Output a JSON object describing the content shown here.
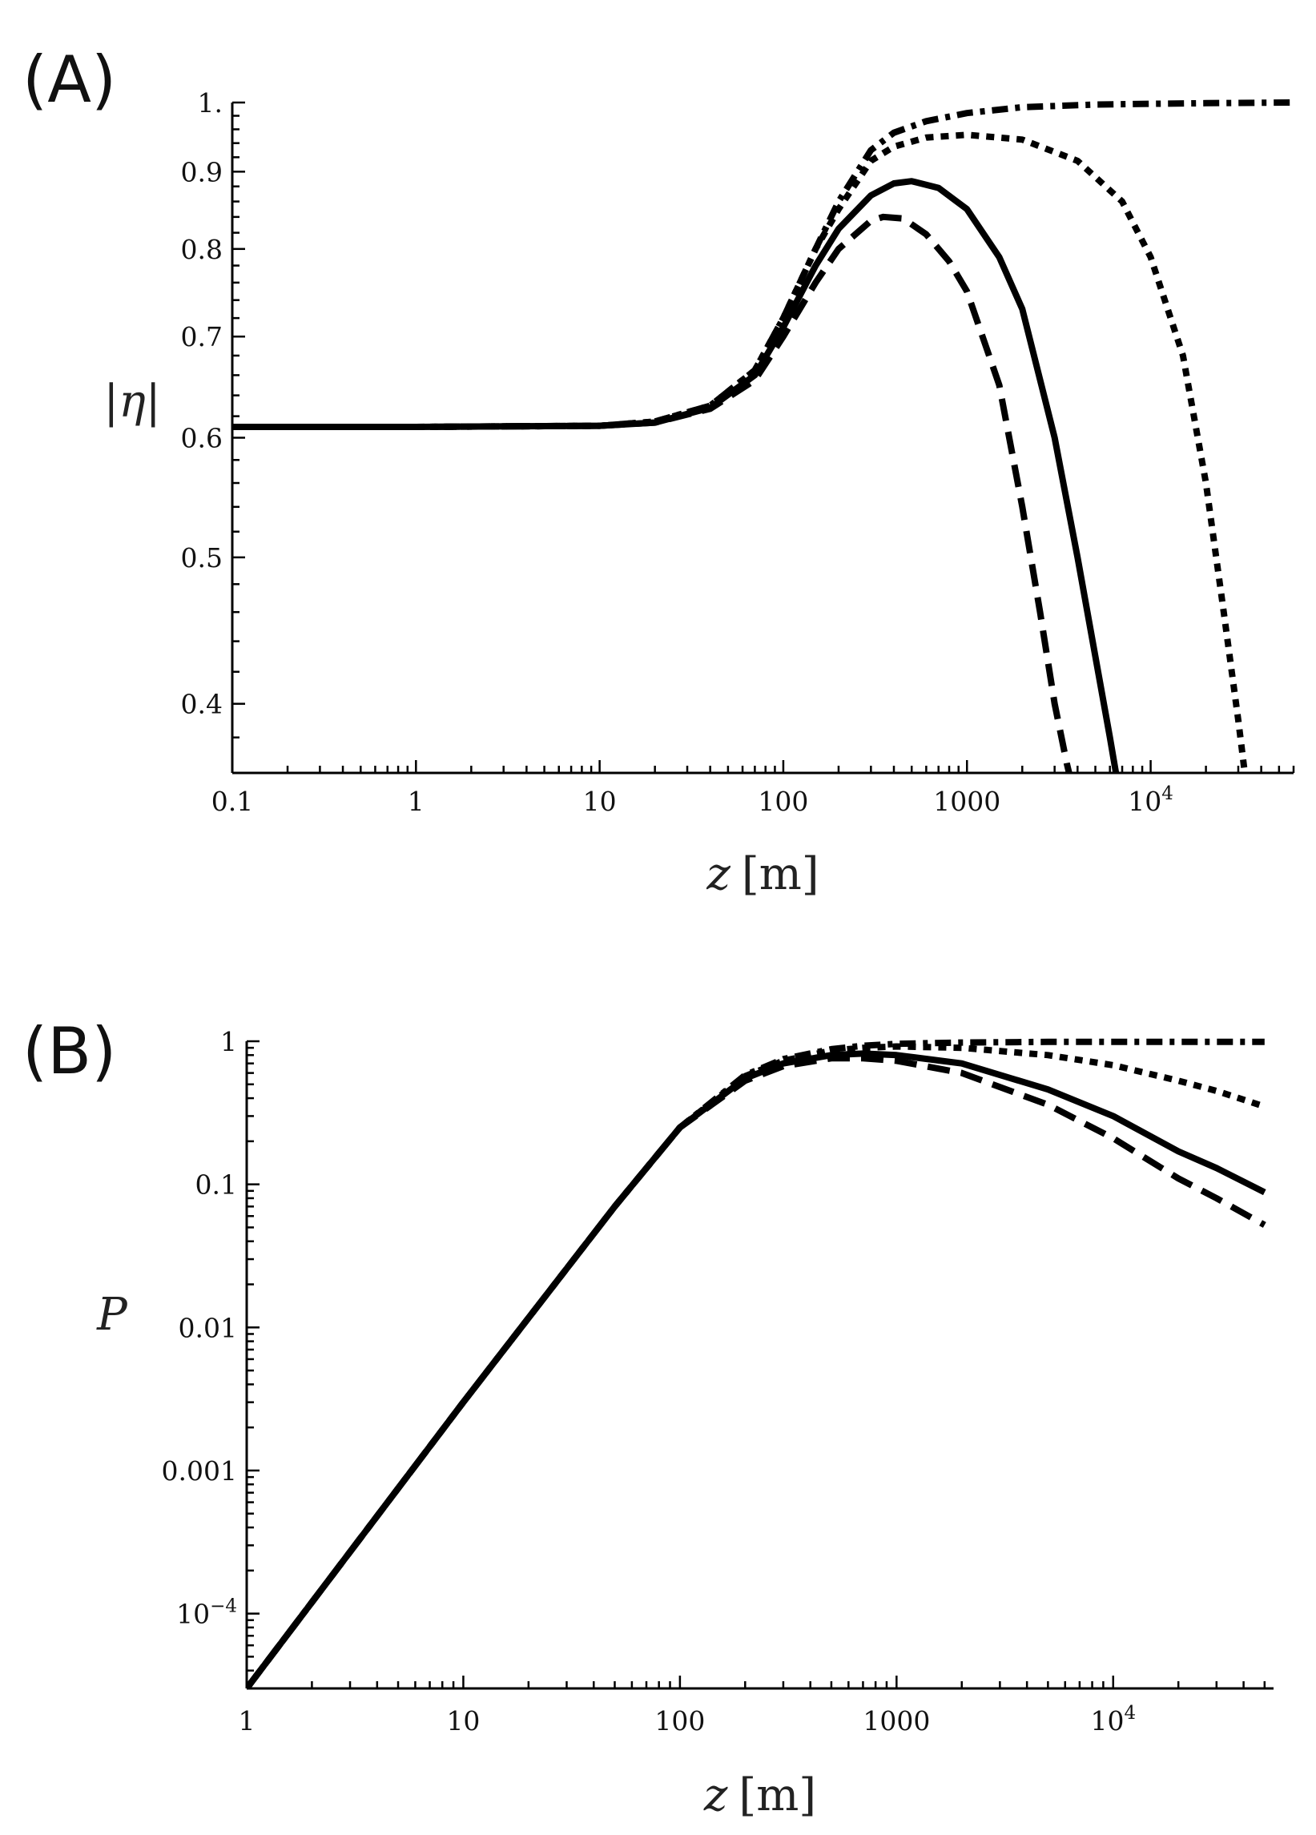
{
  "chart_data": [
    {
      "type": "line",
      "panel_label": "(A)",
      "ylabel": "|η|",
      "xlabel_var": "z",
      "xlabel_unit": "[m]",
      "xscale": "log",
      "yscale": "log",
      "xlim": [
        0.1,
        60000
      ],
      "ylim": [
        0.36,
        1.0
      ],
      "xticks": [
        {
          "value": 0.1,
          "label": "0.1"
        },
        {
          "value": 1,
          "label": "1"
        },
        {
          "value": 10,
          "label": "10"
        },
        {
          "value": 100,
          "label": "100"
        },
        {
          "value": 1000,
          "label": "1000"
        },
        {
          "value": 10000,
          "label": "10",
          "sup": "4"
        }
      ],
      "yticks": [
        {
          "value": 0.4,
          "label": "0.4"
        },
        {
          "value": 0.5,
          "label": "0.5"
        },
        {
          "value": 0.6,
          "label": "0.6"
        },
        {
          "value": 0.7,
          "label": "0.7"
        },
        {
          "value": 0.8,
          "label": "0.8"
        },
        {
          "value": 0.9,
          "label": "0.9"
        },
        {
          "value": 1.0,
          "label": "1."
        }
      ],
      "grid": false,
      "legend": "none",
      "series": [
        {
          "style": "dashdot",
          "x": [
            0.1,
            1,
            10,
            20,
            40,
            70,
            100,
            150,
            200,
            300,
            400,
            600,
            1000,
            2000,
            5000,
            10000,
            20000,
            60000
          ],
          "y": [
            0.61,
            0.61,
            0.611,
            0.615,
            0.63,
            0.665,
            0.72,
            0.8,
            0.86,
            0.93,
            0.955,
            0.972,
            0.984,
            0.993,
            0.997,
            0.998,
            0.999,
            1.0
          ]
        },
        {
          "style": "dotted",
          "x": [
            0.1,
            1,
            10,
            20,
            40,
            70,
            100,
            150,
            200,
            300,
            400,
            600,
            1000,
            2000,
            4000,
            7000,
            10000,
            15000,
            20000,
            25000,
            30000,
            33000
          ],
          "y": [
            0.61,
            0.61,
            0.611,
            0.615,
            0.63,
            0.665,
            0.72,
            0.8,
            0.85,
            0.915,
            0.935,
            0.948,
            0.952,
            0.945,
            0.915,
            0.86,
            0.79,
            0.68,
            0.56,
            0.46,
            0.39,
            0.355
          ]
        },
        {
          "style": "solid",
          "x": [
            0.1,
            1,
            10,
            20,
            40,
            70,
            100,
            150,
            200,
            300,
            400,
            500,
            700,
            1000,
            1500,
            2000,
            3000,
            4000,
            5000,
            6000,
            6600
          ],
          "y": [
            0.61,
            0.61,
            0.611,
            0.614,
            0.628,
            0.66,
            0.71,
            0.78,
            0.825,
            0.868,
            0.884,
            0.887,
            0.878,
            0.85,
            0.79,
            0.73,
            0.6,
            0.5,
            0.43,
            0.38,
            0.355
          ]
        },
        {
          "style": "dashed",
          "x": [
            0.1,
            1,
            10,
            20,
            40,
            70,
            100,
            150,
            200,
            300,
            350,
            450,
            600,
            800,
            1000,
            1500,
            2000,
            2500,
            3000,
            3500,
            3700
          ],
          "y": [
            0.61,
            0.61,
            0.611,
            0.614,
            0.627,
            0.655,
            0.7,
            0.76,
            0.8,
            0.835,
            0.84,
            0.838,
            0.818,
            0.785,
            0.75,
            0.65,
            0.54,
            0.46,
            0.4,
            0.365,
            0.355
          ]
        }
      ]
    },
    {
      "type": "line",
      "panel_label": "(B)",
      "ylabel": "P",
      "xlabel_var": "z",
      "xlabel_unit": "[m]",
      "xscale": "log",
      "yscale": "log",
      "xlim": [
        1,
        55000
      ],
      "ylim": [
        3e-05,
        1.0
      ],
      "xticks": [
        {
          "value": 1,
          "label": "1"
        },
        {
          "value": 10,
          "label": "10"
        },
        {
          "value": 100,
          "label": "100"
        },
        {
          "value": 1000,
          "label": "1000"
        },
        {
          "value": 10000,
          "label": "10",
          "sup": "4"
        }
      ],
      "yticks": [
        {
          "value": 0.0001,
          "label": "10",
          "sup": "−4"
        },
        {
          "value": 0.001,
          "label": "0.001"
        },
        {
          "value": 0.01,
          "label": "0.01"
        },
        {
          "value": 0.1,
          "label": "0.1"
        },
        {
          "value": 1,
          "label": "1"
        }
      ],
      "grid": false,
      "legend": "none",
      "series": [
        {
          "style": "dashdot",
          "x": [
            1,
            10,
            50,
            100,
            200,
            300,
            500,
            700,
            1000,
            2000,
            5000,
            10000,
            20000,
            50000
          ],
          "y": [
            3e-05,
            0.003,
            0.07,
            0.25,
            0.58,
            0.75,
            0.88,
            0.93,
            0.96,
            0.98,
            0.99,
            0.99,
            0.99,
            0.99
          ]
        },
        {
          "style": "dotted",
          "x": [
            1,
            10,
            50,
            100,
            200,
            300,
            500,
            700,
            1000,
            2000,
            5000,
            10000,
            20000,
            30000,
            50000
          ],
          "y": [
            3e-05,
            0.003,
            0.07,
            0.25,
            0.57,
            0.73,
            0.86,
            0.9,
            0.92,
            0.9,
            0.8,
            0.68,
            0.53,
            0.45,
            0.35
          ]
        },
        {
          "style": "solid",
          "x": [
            1,
            10,
            50,
            100,
            200,
            300,
            500,
            700,
            1000,
            2000,
            5000,
            10000,
            20000,
            30000,
            50000
          ],
          "y": [
            3e-05,
            0.003,
            0.07,
            0.25,
            0.55,
            0.7,
            0.8,
            0.82,
            0.8,
            0.7,
            0.46,
            0.3,
            0.17,
            0.13,
            0.088
          ]
        },
        {
          "style": "dashed",
          "x": [
            1,
            10,
            50,
            100,
            200,
            300,
            500,
            700,
            1000,
            2000,
            5000,
            10000,
            20000,
            30000,
            50000
          ],
          "y": [
            3e-05,
            0.003,
            0.07,
            0.25,
            0.53,
            0.67,
            0.76,
            0.76,
            0.73,
            0.6,
            0.36,
            0.21,
            0.11,
            0.08,
            0.052
          ]
        }
      ]
    }
  ]
}
